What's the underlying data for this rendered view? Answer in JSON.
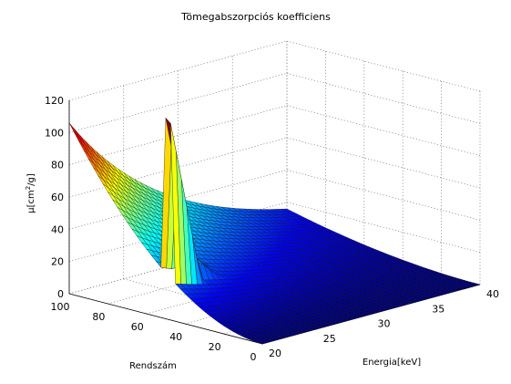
{
  "chart_data": {
    "type": "surface",
    "title": "Tömegabszorpciós koefficiens",
    "xlabel": "Energia[keV]",
    "ylabel": "Rendszám",
    "zlabel_main": "μ[cm",
    "zlabel_sup": "2",
    "zlabel_end": "/g]",
    "x_ticks": [
      "20",
      "25",
      "30",
      "35",
      "40"
    ],
    "y_ticks": [
      "0",
      "20",
      "40",
      "60",
      "80",
      "100"
    ],
    "z_ticks": [
      "0",
      "20",
      "40",
      "60",
      "80",
      "100",
      "120"
    ],
    "xlim": [
      20,
      40
    ],
    "ylim": [
      0,
      100
    ],
    "zlim": [
      0,
      120
    ],
    "grid": true,
    "colormap": "jet",
    "surface_summary": [
      {
        "energy_keV": 20,
        "atomic_number": 100,
        "mu": 105
      },
      {
        "energy_keV": 20,
        "atomic_number": 40,
        "mu": 0
      },
      {
        "energy_keV": 30,
        "atomic_number": 100,
        "mu": 45
      },
      {
        "energy_keV": 40,
        "atomic_number": 100,
        "mu": 15
      },
      {
        "energy_keV": 40,
        "atomic_number": 0,
        "mu": 0
      },
      {
        "energy_keV": 21.5,
        "atomic_number": 48,
        "mu": 60
      }
    ]
  }
}
